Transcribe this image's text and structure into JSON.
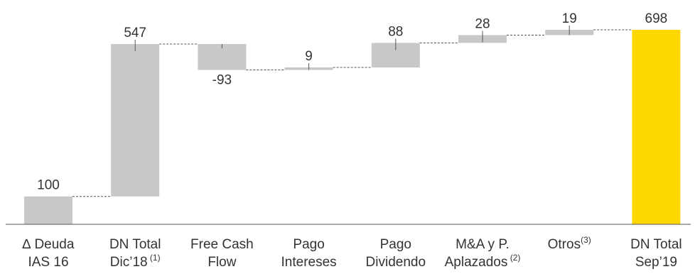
{
  "chart_data": {
    "type": "bar",
    "subtype": "waterfall",
    "categories": [
      {
        "line1": "∆ Deuda",
        "line2": "IAS 16",
        "superscript": ""
      },
      {
        "line1": "DN Total",
        "line2": "Dic’18",
        "superscript": "(1)"
      },
      {
        "line1": "Free Cash",
        "line2": "Flow",
        "superscript": ""
      },
      {
        "line1": "Pago",
        "line2": "Intereses",
        "superscript": ""
      },
      {
        "line1": "Pago",
        "line2": "Dividendo",
        "superscript": ""
      },
      {
        "line1": "M&A y P.",
        "line2": "Aplazados",
        "superscript": "(2)"
      },
      {
        "line1": "Otros",
        "line2": "",
        "superscript": "(3)"
      },
      {
        "line1": "DN Total",
        "line2": "Sep’19",
        "superscript": ""
      }
    ],
    "bars": [
      {
        "label": "100",
        "start": 0,
        "end": 100,
        "kind": "total"
      },
      {
        "label": "547",
        "start": 100,
        "end": 647,
        "kind": "increase"
      },
      {
        "label": "-93",
        "start": 647,
        "end": 554,
        "kind": "decrease"
      },
      {
        "label": "9",
        "start": 554,
        "end": 563,
        "kind": "increase"
      },
      {
        "label": "88",
        "start": 563,
        "end": 651,
        "kind": "increase"
      },
      {
        "label": "28",
        "start": 651,
        "end": 679,
        "kind": "increase"
      },
      {
        "label": "19",
        "start": 679,
        "end": 698,
        "kind": "increase"
      },
      {
        "label": "698",
        "start": 0,
        "end": 698,
        "kind": "total"
      }
    ],
    "ylim": [
      0,
      698
    ],
    "grid": false,
    "legend": "none",
    "colors": {
      "bar": "#c8c8c8",
      "final_bar": "#ffd700",
      "connector": "#555555",
      "text": "#333333",
      "axis": "#555555"
    }
  }
}
